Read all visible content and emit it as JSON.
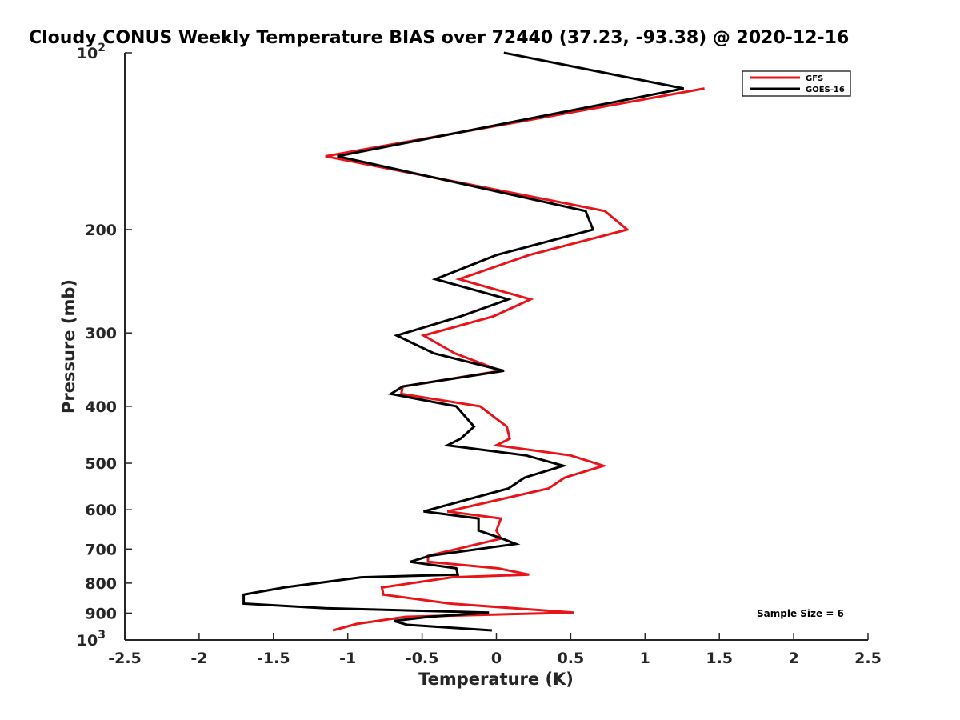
{
  "chart_data": {
    "type": "line",
    "title": "Cloudy CONUS Weekly Temperature BIAS over 72440 (37.23, -93.38) @ 2020-12-16",
    "xlabel": "Temperature (K)",
    "ylabel": "Pressure (mb)",
    "xlim": [
      -2.5,
      2.5
    ],
    "ylim": [
      100,
      1000
    ],
    "y_scale": "log",
    "y_reversed": true,
    "grid": false,
    "legend_position": "top-right",
    "x_ticks": [
      "-2.5",
      "-2",
      "-1.5",
      "-1",
      "-0.5",
      "0",
      "0.5",
      "1",
      "1.5",
      "2",
      "2.5"
    ],
    "x_tick_values": [
      -2.5,
      -2,
      -1.5,
      -1,
      -0.5,
      0,
      0.5,
      1,
      1.5,
      2,
      2.5
    ],
    "y_ticks": [
      {
        "value": 100,
        "label": "10",
        "sup": "2"
      },
      {
        "value": 200,
        "label": "200",
        "sup": ""
      },
      {
        "value": 300,
        "label": "300",
        "sup": ""
      },
      {
        "value": 400,
        "label": "400",
        "sup": ""
      },
      {
        "value": 500,
        "label": "500",
        "sup": ""
      },
      {
        "value": 600,
        "label": "600",
        "sup": ""
      },
      {
        "value": 700,
        "label": "700",
        "sup": ""
      },
      {
        "value": 800,
        "label": "800",
        "sup": ""
      },
      {
        "value": 900,
        "label": "900",
        "sup": ""
      },
      {
        "value": 1000,
        "label": "10",
        "sup": "3"
      }
    ],
    "annotation": "Sample Size = 6",
    "series": [
      {
        "name": "GFS",
        "color": "#e8141a",
        "points": [
          [
            1.4,
            115
          ],
          [
            -0.2,
            136
          ],
          [
            -1.15,
            150
          ],
          [
            0.73,
            186
          ],
          [
            0.88,
            200
          ],
          [
            0.22,
            221
          ],
          [
            -0.25,
            243
          ],
          [
            0.23,
            263
          ],
          [
            -0.02,
            281
          ],
          [
            -0.49,
            303
          ],
          [
            -0.28,
            325
          ],
          [
            0.03,
            348
          ],
          [
            -0.63,
            370
          ],
          [
            -0.64,
            381
          ],
          [
            -0.11,
            400
          ],
          [
            0.07,
            433
          ],
          [
            0.09,
            454
          ],
          [
            0.0,
            466
          ],
          [
            0.5,
            485
          ],
          [
            0.72,
            505
          ],
          [
            0.46,
            529
          ],
          [
            0.35,
            552
          ],
          [
            -0.33,
            604
          ],
          [
            0.03,
            621
          ],
          [
            0.0,
            651
          ],
          [
            0.03,
            672
          ],
          [
            -0.46,
            719
          ],
          [
            -0.46,
            736
          ],
          [
            0.01,
            755
          ],
          [
            0.22,
            774
          ],
          [
            -0.3,
            782
          ],
          [
            -0.77,
            814
          ],
          [
            -0.76,
            837
          ],
          [
            -0.31,
            867
          ],
          [
            0.52,
            898
          ],
          [
            -0.61,
            913
          ],
          [
            -0.94,
            939
          ],
          [
            -1.1,
            963
          ]
        ]
      },
      {
        "name": "GOES-16",
        "color": "#000000",
        "points": [
          [
            0.05,
            100
          ],
          [
            1.26,
            115
          ],
          [
            -1.07,
            150
          ],
          [
            0.6,
            186
          ],
          [
            0.65,
            200
          ],
          [
            0.0,
            221
          ],
          [
            -0.41,
            243
          ],
          [
            0.08,
            263
          ],
          [
            -0.24,
            281
          ],
          [
            -0.67,
            303
          ],
          [
            -0.42,
            325
          ],
          [
            0.05,
            348
          ],
          [
            -0.63,
            370
          ],
          [
            -0.71,
            381
          ],
          [
            -0.27,
            400
          ],
          [
            -0.15,
            433
          ],
          [
            -0.24,
            454
          ],
          [
            -0.33,
            466
          ],
          [
            0.2,
            485
          ],
          [
            0.45,
            505
          ],
          [
            0.19,
            529
          ],
          [
            0.08,
            552
          ],
          [
            -0.49,
            604
          ],
          [
            -0.12,
            621
          ],
          [
            -0.12,
            651
          ],
          [
            0.04,
            672
          ],
          [
            0.13,
            686
          ],
          [
            -0.45,
            719
          ],
          [
            -0.58,
            736
          ],
          [
            -0.27,
            755
          ],
          [
            -0.26,
            774
          ],
          [
            -0.91,
            782
          ],
          [
            -1.43,
            814
          ],
          [
            -1.7,
            837
          ],
          [
            -1.7,
            867
          ],
          [
            -1.15,
            883
          ],
          [
            -0.05,
            898
          ],
          [
            -0.45,
            913
          ],
          [
            -0.69,
            928
          ],
          [
            -0.6,
            942
          ],
          [
            -0.03,
            963
          ]
        ]
      }
    ]
  }
}
